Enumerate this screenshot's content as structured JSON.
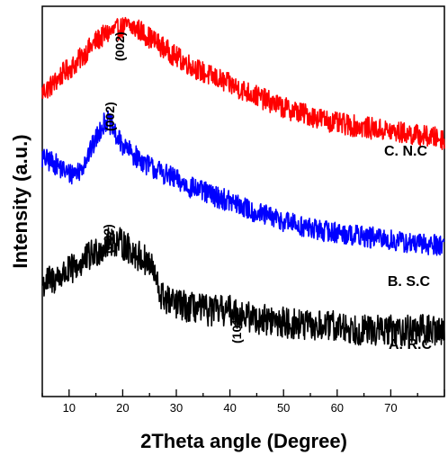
{
  "chart_data": {
    "type": "line",
    "xlabel": "2Theta angle (Degree)",
    "ylabel": "Intensity (a.u.)",
    "xlim": [
      5,
      80
    ],
    "x_ticks": [
      10,
      20,
      30,
      40,
      50,
      60,
      70
    ],
    "y_ticks_shown": false,
    "grid": false,
    "legend": "none",
    "series": [
      {
        "name": "C. N.C",
        "color": "#ff0000",
        "points": [
          [
            5,
            0.78
          ],
          [
            7,
            0.8
          ],
          [
            9,
            0.83
          ],
          [
            11,
            0.85
          ],
          [
            13,
            0.88
          ],
          [
            15,
            0.91
          ],
          [
            17,
            0.93
          ],
          [
            19,
            0.94
          ],
          [
            21,
            0.95
          ],
          [
            23,
            0.94
          ],
          [
            25,
            0.92
          ],
          [
            27,
            0.9
          ],
          [
            30,
            0.87
          ],
          [
            35,
            0.83
          ],
          [
            40,
            0.8
          ],
          [
            45,
            0.77
          ],
          [
            50,
            0.74
          ],
          [
            55,
            0.72
          ],
          [
            60,
            0.7
          ],
          [
            65,
            0.69
          ],
          [
            70,
            0.68
          ],
          [
            75,
            0.67
          ],
          [
            80,
            0.66
          ]
        ],
        "noise": 0.028
      },
      {
        "name": "B. S.C",
        "color": "#0000ff",
        "points": [
          [
            5,
            0.61
          ],
          [
            7,
            0.6
          ],
          [
            9,
            0.58
          ],
          [
            10,
            0.57
          ],
          [
            12,
            0.58
          ],
          [
            14,
            0.63
          ],
          [
            15,
            0.66
          ],
          [
            16,
            0.69
          ],
          [
            17,
            0.71
          ],
          [
            18,
            0.69
          ],
          [
            19,
            0.66
          ],
          [
            21,
            0.63
          ],
          [
            23,
            0.61
          ],
          [
            25,
            0.59
          ],
          [
            28,
            0.57
          ],
          [
            32,
            0.54
          ],
          [
            36,
            0.52
          ],
          [
            40,
            0.5
          ],
          [
            45,
            0.47
          ],
          [
            50,
            0.45
          ],
          [
            55,
            0.43
          ],
          [
            60,
            0.42
          ],
          [
            65,
            0.41
          ],
          [
            70,
            0.4
          ],
          [
            75,
            0.39
          ],
          [
            80,
            0.39
          ]
        ],
        "noise": 0.028
      },
      {
        "name": "A. R.C",
        "color": "#000000",
        "points": [
          [
            5,
            0.29
          ],
          [
            7,
            0.3
          ],
          [
            10,
            0.32
          ],
          [
            12,
            0.34
          ],
          [
            14,
            0.36
          ],
          [
            16,
            0.38
          ],
          [
            18,
            0.4
          ],
          [
            20,
            0.39
          ],
          [
            22,
            0.37
          ],
          [
            24,
            0.35
          ],
          [
            25,
            0.34
          ],
          [
            26,
            0.31
          ],
          [
            27,
            0.26
          ],
          [
            29,
            0.24
          ],
          [
            32,
            0.23
          ],
          [
            36,
            0.22
          ],
          [
            40,
            0.22
          ],
          [
            42,
            0.21
          ],
          [
            45,
            0.2
          ],
          [
            50,
            0.19
          ],
          [
            55,
            0.18
          ],
          [
            60,
            0.18
          ],
          [
            65,
            0.17
          ],
          [
            70,
            0.17
          ],
          [
            75,
            0.17
          ],
          [
            80,
            0.17
          ]
        ],
        "noise": 0.04
      }
    ],
    "annotations": [
      {
        "text": "(002)",
        "x": 20
      },
      {
        "text": "(002)",
        "x": 17
      },
      {
        "text": "(002)",
        "x": 17.5
      },
      {
        "text": "(101)",
        "x": 41
      }
    ]
  }
}
